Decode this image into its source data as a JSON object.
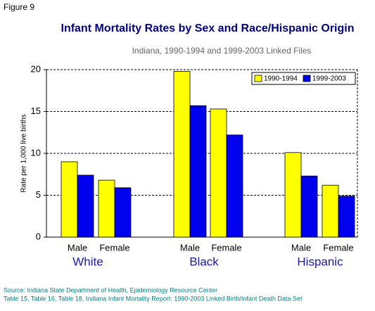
{
  "figure_label": "Figure 9",
  "chart_data": {
    "type": "bar",
    "title": "Infant Mortality Rates by Sex and Race/Hispanic Origin",
    "subtitle": "Indiana, 1990-1994 and 1999-2003 Linked Files",
    "y_label": "Rate per 1,000 live births",
    "categories": [
      "Male",
      "Female",
      "Male",
      "Female",
      "Male",
      "Female"
    ],
    "groups": [
      "White",
      "Black",
      "Hispanic"
    ],
    "series": [
      {
        "name": "1990-1994",
        "color": "#ffff00",
        "values": [
          9.0,
          6.8,
          19.8,
          15.3,
          10.1,
          6.2
        ]
      },
      {
        "name": "1999-2003",
        "color": "#0000ee",
        "values": [
          7.4,
          5.9,
          15.7,
          12.2,
          7.3,
          4.9
        ]
      }
    ],
    "ylim": [
      0,
      20
    ],
    "yticks": [
      0,
      5,
      10,
      15,
      20
    ],
    "grid": true,
    "legend": "upper right"
  },
  "source": [
    "Source: Indiana State Department of Health, Epidemiology Resource Center",
    "Table 15, Table 16, Table 18, Indiana Infant Mortality Report: 1990-2003 Linked Birth/Infant Death Data Set"
  ]
}
